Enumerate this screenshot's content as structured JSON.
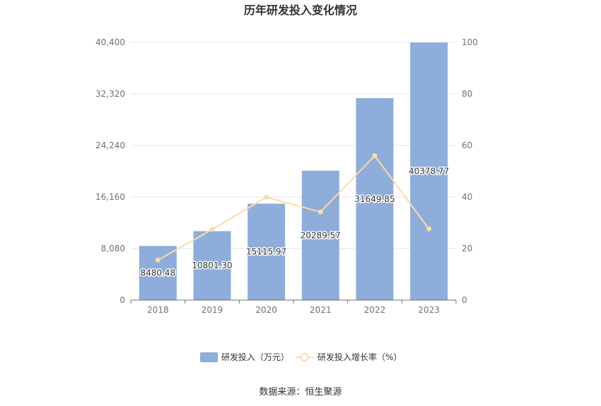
{
  "chart_data": {
    "type": "bar",
    "title": "历年研发投入变化情况",
    "categories": [
      "2018",
      "2019",
      "2020",
      "2021",
      "2022",
      "2023"
    ],
    "series": [
      {
        "name": "研发投入（万元）",
        "type": "bar",
        "axis": "left",
        "values": [
          8480.48,
          10801.3,
          15115.97,
          20289.57,
          31649.85,
          40378.77
        ],
        "labels": [
          "8480.48",
          "10801.30",
          "15115.97",
          "20289.57",
          "31649.85",
          "40378.77"
        ],
        "color": "#8eadda"
      },
      {
        "name": "研发投入增长率（%）",
        "type": "line",
        "axis": "right",
        "values": [
          15.5,
          27.4,
          39.9,
          34.2,
          56.0,
          27.6
        ],
        "color": "#fcdba8"
      }
    ],
    "y_left": {
      "min": 0,
      "max": 40400,
      "ticks": [
        "0",
        "8,080",
        "16,160",
        "24,240",
        "32,320",
        "40,400"
      ]
    },
    "y_right": {
      "min": 0,
      "max": 100,
      "ticks": [
        "0",
        "20",
        "40",
        "60",
        "80",
        "100"
      ]
    },
    "grid": true,
    "legend_position": "bottom-center",
    "source": "数据来源：恒生聚源"
  }
}
